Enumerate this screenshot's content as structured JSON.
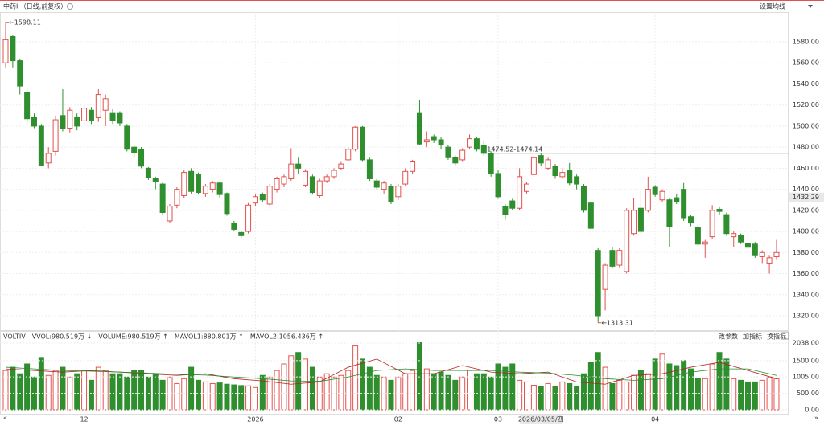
{
  "chart_data": {
    "type": "candlestick",
    "title": "中药II（日线,前复权）",
    "button_ma": "设置均线",
    "candles": [
      [
        1560,
        1598.11,
        1555,
        1582
      ],
      [
        1585,
        1586,
        1555,
        1562
      ],
      [
        1562,
        1564,
        1530,
        1538
      ],
      [
        1532,
        1534,
        1502,
        1507
      ],
      [
        1508,
        1512,
        1498,
        1500
      ],
      [
        1500,
        1502,
        1462,
        1463
      ],
      [
        1465,
        1480,
        1460,
        1474
      ],
      [
        1476,
        1510,
        1472,
        1506
      ],
      [
        1510,
        1535,
        1495,
        1498
      ],
      [
        1498,
        1518,
        1494,
        1515
      ],
      [
        1508,
        1512,
        1496,
        1500
      ],
      [
        1505,
        1520,
        1500,
        1517
      ],
      [
        1515,
        1518,
        1502,
        1505
      ],
      [
        1508,
        1535,
        1504,
        1530
      ],
      [
        1515,
        1530,
        1500,
        1526
      ],
      [
        1512,
        1516,
        1502,
        1505
      ],
      [
        1512,
        1514,
        1500,
        1503
      ],
      [
        1500,
        1502,
        1476,
        1478
      ],
      [
        1480,
        1482,
        1470,
        1475
      ],
      [
        1478,
        1480,
        1460,
        1462
      ],
      [
        1460,
        1461,
        1449,
        1451
      ],
      [
        1450,
        1452,
        1440,
        1447
      ],
      [
        1445,
        1447,
        1416,
        1418
      ],
      [
        1410,
        1426,
        1408,
        1424
      ],
      [
        1425,
        1442,
        1422,
        1440
      ],
      [
        1434,
        1458,
        1432,
        1456
      ],
      [
        1457,
        1460,
        1436,
        1438
      ],
      [
        1454,
        1456,
        1435,
        1437
      ],
      [
        1436,
        1445,
        1433,
        1443
      ],
      [
        1440,
        1448,
        1437,
        1446
      ],
      [
        1446,
        1447,
        1432,
        1435
      ],
      [
        1436,
        1437,
        1415,
        1417
      ],
      [
        1408,
        1410,
        1400,
        1402
      ],
      [
        1399,
        1401,
        1394,
        1396
      ],
      [
        1400,
        1427,
        1398,
        1425
      ],
      [
        1427,
        1435,
        1424,
        1433
      ],
      [
        1435,
        1437,
        1428,
        1430
      ],
      [
        1426,
        1445,
        1424,
        1443
      ],
      [
        1440,
        1452,
        1437,
        1450
      ],
      [
        1445,
        1454,
        1442,
        1452
      ],
      [
        1450,
        1479,
        1448,
        1464
      ],
      [
        1464,
        1470,
        1455,
        1460
      ],
      [
        1444,
        1459,
        1442,
        1457
      ],
      [
        1452,
        1454,
        1435,
        1437
      ],
      [
        1434,
        1450,
        1432,
        1448
      ],
      [
        1448,
        1454,
        1446,
        1452
      ],
      [
        1452,
        1460,
        1450,
        1458
      ],
      [
        1460,
        1466,
        1458,
        1464
      ],
      [
        1468,
        1480,
        1466,
        1478
      ],
      [
        1478,
        1500,
        1476,
        1499
      ],
      [
        1499,
        1500,
        1466,
        1468
      ],
      [
        1468,
        1470,
        1448,
        1450
      ],
      [
        1448,
        1450,
        1440,
        1442
      ],
      [
        1440,
        1448,
        1436,
        1446
      ],
      [
        1443,
        1445,
        1426,
        1428
      ],
      [
        1433,
        1445,
        1430,
        1443
      ],
      [
        1445,
        1460,
        1443,
        1457
      ],
      [
        1457,
        1468,
        1455,
        1466
      ],
      [
        1512,
        1525,
        1482,
        1483
      ],
      [
        1485,
        1495,
        1480,
        1487
      ],
      [
        1490,
        1492,
        1484,
        1487
      ],
      [
        1487,
        1490,
        1478,
        1482
      ],
      [
        1480,
        1482,
        1468,
        1470
      ],
      [
        1470,
        1472,
        1463,
        1465
      ],
      [
        1468,
        1479,
        1466,
        1477
      ],
      [
        1480,
        1492,
        1478,
        1488
      ],
      [
        1488,
        1490,
        1476,
        1478
      ],
      [
        1482,
        1486,
        1472,
        1474.14
      ],
      [
        1474,
        1476,
        1452,
        1455
      ],
      [
        1455,
        1458,
        1431,
        1433
      ],
      [
        1424,
        1426,
        1411,
        1416
      ],
      [
        1429,
        1431,
        1420,
        1422
      ],
      [
        1422,
        1460,
        1420,
        1452
      ],
      [
        1438,
        1447,
        1436,
        1445
      ],
      [
        1454,
        1472,
        1452,
        1470
      ],
      [
        1472,
        1474,
        1462,
        1465
      ],
      [
        1460,
        1470,
        1458,
        1468
      ],
      [
        1462,
        1464,
        1450,
        1453
      ],
      [
        1452,
        1460,
        1450,
        1456
      ],
      [
        1458,
        1465,
        1444,
        1446
      ],
      [
        1452,
        1454,
        1440,
        1445
      ],
      [
        1443,
        1445,
        1418,
        1420
      ],
      [
        1427,
        1429,
        1402,
        1403
      ],
      [
        1382,
        1384,
        1313.31,
        1320
      ],
      [
        1345,
        1370,
        1325,
        1368
      ],
      [
        1382,
        1385,
        1365,
        1367
      ],
      [
        1368,
        1384,
        1366,
        1382
      ],
      [
        1362,
        1422,
        1360,
        1420
      ],
      [
        1398,
        1432,
        1396,
        1420
      ],
      [
        1422,
        1438,
        1398,
        1400
      ],
      [
        1420,
        1452,
        1418,
        1440
      ],
      [
        1442,
        1444,
        1433,
        1435
      ],
      [
        1430,
        1440,
        1428,
        1438
      ],
      [
        1430,
        1432,
        1385,
        1405
      ],
      [
        1432,
        1436,
        1426,
        1428
      ],
      [
        1440,
        1446,
        1410,
        1413
      ],
      [
        1414,
        1416,
        1405,
        1408
      ],
      [
        1404,
        1406,
        1386,
        1388
      ],
      [
        1388,
        1392,
        1375,
        1390
      ],
      [
        1395,
        1425,
        1393,
        1420
      ],
      [
        1421,
        1423,
        1416,
        1419
      ],
      [
        1416,
        1418,
        1396,
        1398
      ],
      [
        1395,
        1400,
        1385,
        1398
      ],
      [
        1396,
        1398,
        1388,
        1390
      ],
      [
        1389,
        1391,
        1383,
        1385
      ],
      [
        1388,
        1390,
        1375,
        1377
      ],
      [
        1376,
        1382,
        1370,
        1380
      ],
      [
        1370,
        1377,
        1360,
        1375
      ],
      [
        1376,
        1392,
        1373,
        1380
      ]
    ],
    "ylim": [
      1300,
      1600
    ],
    "yticks": [
      {
        "value": 1580,
        "label": "1580.00"
      },
      {
        "value": 1560,
        "label": "1560.00"
      },
      {
        "value": 1540,
        "label": "1540.00"
      },
      {
        "value": 1520,
        "label": "1520.00"
      },
      {
        "value": 1500,
        "label": "1500.00"
      },
      {
        "value": 1480,
        "label": "1480.00"
      },
      {
        "value": 1460,
        "label": "1460.00"
      },
      {
        "value": 1440,
        "label": "1440.00"
      },
      {
        "value": 1420,
        "label": "1420.00"
      },
      {
        "value": 1400,
        "label": "1400.00"
      },
      {
        "value": 1380,
        "label": "1380.00"
      },
      {
        "value": 1360,
        "label": "1360.00"
      },
      {
        "value": 1340,
        "label": "1340.00"
      },
      {
        "value": 1320,
        "label": "1320.00"
      }
    ],
    "last_price": {
      "value": 1432.29,
      "label": "1432.29"
    },
    "high_label": {
      "index": 0,
      "value": 1598.11,
      "label": "←1598.11"
    },
    "low_label": {
      "index": 83,
      "value": 1313.31,
      "label": "←1313.31"
    },
    "range_line": {
      "index": 67,
      "value": 1474.14,
      "label": "1474.52-1474.14"
    },
    "volume": {
      "values": [
        1200,
        1300,
        1100,
        1400,
        1000,
        1600,
        1050,
        1200,
        1300,
        1000,
        1100,
        1200,
        900,
        1300,
        1200,
        1100,
        1100,
        1000,
        1200,
        1200,
        1000,
        1100,
        900,
        1000,
        800,
        950,
        1300,
        900,
        850,
        800,
        820,
        780,
        760,
        740,
        730,
        680,
        1050,
        1000,
        1200,
        1400,
        1650,
        1750,
        1550,
        1300,
        1000,
        1100,
        1000,
        1050,
        1200,
        1950,
        1550,
        1300,
        1050,
        1000,
        900,
        1000,
        1100,
        1200,
        2050,
        1250,
        1100,
        1150,
        1050,
        900,
        1000,
        1200,
        1100,
        1100,
        1000,
        1400,
        1300,
        1400,
        900,
        850,
        750,
        700,
        800,
        700,
        850,
        800,
        700,
        1100,
        1450,
        1750,
        1300,
        800,
        900,
        850,
        1050,
        1200,
        1100,
        1550,
        1700,
        1400,
        1350,
        1500,
        1250,
        950,
        950,
        1400,
        1750,
        1550,
        950,
        900,
        850,
        850,
        900,
        1000,
        950
      ],
      "ylim": [
        0,
        2038
      ],
      "yticks": [
        {
          "value": 2038,
          "label": "2038.00"
        },
        {
          "value": 1500,
          "label": "1500.00"
        },
        {
          "value": 1005,
          "label": "1005.00"
        },
        {
          "value": 500,
          "label": "500.00"
        },
        {
          "value": 0,
          "label": "0.00"
        }
      ],
      "legend": [
        "VOLTIV",
        "VVOL:980.519万 ↓",
        "VOLUME:980.519万 ↑",
        "MAVOL1:880.801万 ↑",
        "MAVOL2:1056.436万 ↑"
      ],
      "buttons": [
        "改参数",
        "加指标",
        "换指标"
      ],
      "ma_x": [
        0,
        4,
        8,
        12,
        16,
        20,
        24,
        28,
        32,
        36,
        40,
        44,
        48,
        52,
        56,
        60,
        64,
        68,
        72,
        76,
        80,
        84,
        88,
        92,
        96,
        100,
        104,
        108
      ],
      "series": [
        {
          "name": "MAVOL1",
          "color": "#b22222",
          "values": [
            1250,
            1200,
            1150,
            1200,
            1150,
            1100,
            1050,
            1100,
            950,
            880,
            780,
            850,
            1300,
            1550,
            1100,
            1100,
            1350,
            1150,
            1100,
            1150,
            850,
            780,
            1050,
            1100,
            1300,
            1450,
            1200,
            950
          ]
        },
        {
          "name": "MAVOL2",
          "color": "#2e8b2e",
          "values": [
            1300,
            1250,
            1200,
            1180,
            1150,
            1120,
            1080,
            1060,
            1000,
            950,
            880,
            870,
            1000,
            1200,
            1250,
            1200,
            1200,
            1200,
            1150,
            1120,
            1050,
            950,
            900,
            950,
            1150,
            1250,
            1250,
            1050
          ]
        }
      ]
    },
    "x_labels": [
      {
        "index": 11,
        "label": "12"
      },
      {
        "index": 35,
        "label": "2026"
      },
      {
        "index": 55,
        "label": "02"
      },
      {
        "index": 69,
        "label": "03"
      },
      {
        "index": 91,
        "label": "04"
      }
    ],
    "cursor_label": {
      "index": 75,
      "label": "2026/03/05/四"
    },
    "up_color": "#e0524f",
    "down_color": "#2f8f2f"
  }
}
